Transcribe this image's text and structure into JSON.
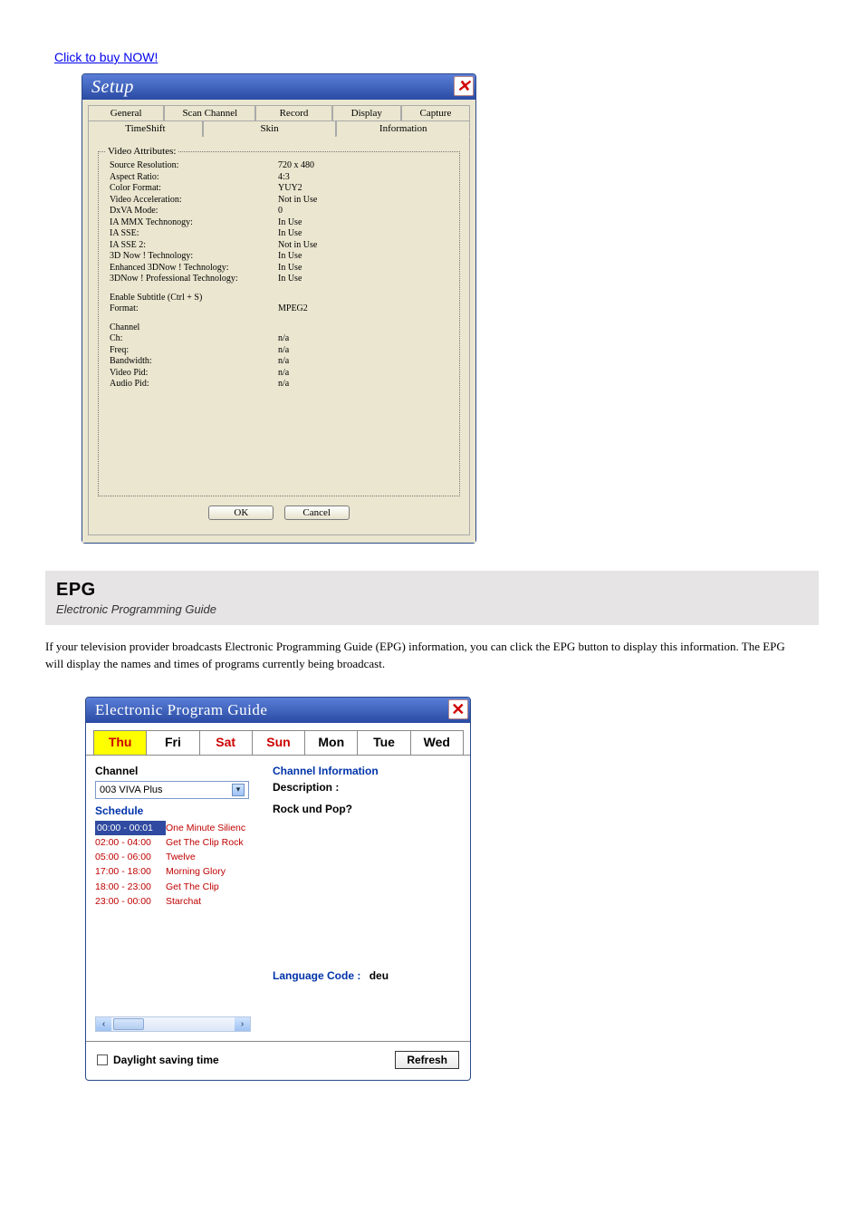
{
  "link_text": "Click to buy NOW!",
  "setup": {
    "title": "Setup",
    "tabs_row1": [
      "General",
      "Scan Channel",
      "Record",
      "Display",
      "Capture"
    ],
    "tabs_row2": [
      "TimeShift",
      "Skin",
      "Information"
    ],
    "video_attributes_legend": "Video Attributes:",
    "video_attributes": [
      {
        "k": "Source Resolution:",
        "v": "720 x 480"
      },
      {
        "k": "Aspect Ratio:",
        "v": "4:3"
      },
      {
        "k": "Color Format:",
        "v": "YUY2"
      },
      {
        "k": "Video Acceleration:",
        "v": "Not in Use"
      },
      {
        "k": "DxVA Mode:",
        "v": "0"
      },
      {
        "k": "IA MMX Technonogy:",
        "v": "In Use"
      },
      {
        "k": "IA SSE:",
        "v": "In Use"
      },
      {
        "k": "IA SSE 2:",
        "v": "Not in Use"
      },
      {
        "k": "3D Now ! Technology:",
        "v": "In Use"
      },
      {
        "k": "Enhanced 3DNow ! Technology:",
        "v": "In Use"
      },
      {
        "k": "3DNow ! Professional Technology:",
        "v": "In Use"
      }
    ],
    "subtitle": [
      {
        "k": "Enable Subtitle (Ctrl + S)",
        "v": ""
      },
      {
        "k": "Format:",
        "v": "MPEG2"
      }
    ],
    "channel_legend": "Channel",
    "channel": [
      {
        "k": "Ch:",
        "v": "n/a"
      },
      {
        "k": "Freq:",
        "v": "n/a"
      },
      {
        "k": "Bandwidth:",
        "v": "n/a"
      },
      {
        "k": "Video Pid:",
        "v": "n/a"
      },
      {
        "k": "Audio Pid:",
        "v": "n/a"
      }
    ],
    "ok": "OK",
    "cancel": "Cancel"
  },
  "section": {
    "heading": "EPG",
    "subheading": "Electronic Programming Guide",
    "para": "If your television provider broadcasts Electronic Programming Guide (EPG) information, you can click the EPG button to display this information. The EPG will display the names and times of programs currently being broadcast."
  },
  "epg": {
    "title": "Electronic Program Guide",
    "tabs": [
      "Thu",
      "Fri",
      "Sat",
      "Sun",
      "Mon",
      "Tue",
      "Wed"
    ],
    "tab_colors": {
      "active_bg": "#ffff00",
      "weekend_text": "#c00000",
      "weekday_text": "#000000"
    },
    "channel_label": "Channel",
    "channel_value": "003   VIVA Plus",
    "channel_info_label": "Channel Information",
    "description_label": "Description :",
    "description_body": "Rock und Pop?",
    "schedule_label": "Schedule",
    "schedule": [
      {
        "t": "00:00 - 00:01",
        "n": "One Minute Silienc"
      },
      {
        "t": "02:00 - 04:00",
        "n": "Get The Clip Rock"
      },
      {
        "t": "05:00 - 06:00",
        "n": "Twelve"
      },
      {
        "t": "17:00 - 18:00",
        "n": "Morning Glory"
      },
      {
        "t": "18:00 - 23:00",
        "n": "Get The Clip"
      },
      {
        "t": "23:00 - 00:00",
        "n": "Starchat"
      }
    ],
    "language_code_label": "Language Code :",
    "language_code_value": "deu",
    "dst_label": "Daylight saving time",
    "refresh": "Refresh"
  }
}
